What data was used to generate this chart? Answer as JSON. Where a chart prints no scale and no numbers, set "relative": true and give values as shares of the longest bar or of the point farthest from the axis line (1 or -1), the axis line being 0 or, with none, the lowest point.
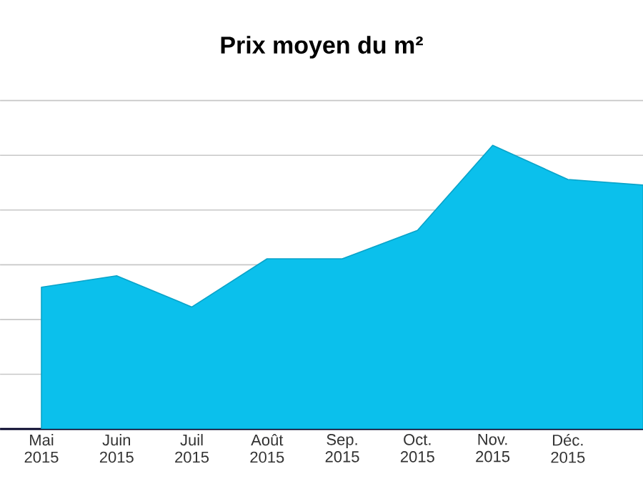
{
  "chart_data": {
    "type": "area",
    "title": "Prix moyen du m²",
    "relative": true,
    "grid": true,
    "color": "#0bc0ec",
    "categories": [
      "Mai 2015",
      "Juin 2015",
      "Juil 2015",
      "Août 2015",
      "Sep. 2015",
      "Oct. 2015",
      "Nov. 2015",
      "Déc. 2015",
      null
    ],
    "values": [
      0.5,
      0.54,
      0.43,
      0.6,
      0.6,
      0.7,
      1.0,
      0.88,
      0.86
    ]
  }
}
